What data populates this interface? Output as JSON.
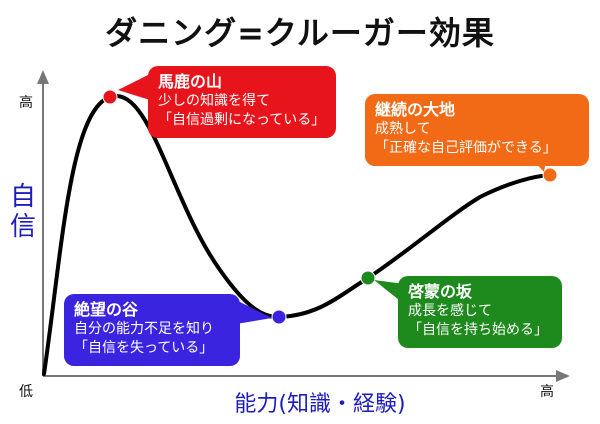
{
  "title": "ダニング=クルーガー効果",
  "axes": {
    "y_title": "自信",
    "x_title": "能力(知識・経験)",
    "y_high": "高",
    "origin_low": "低",
    "x_high": "高"
  },
  "stages": [
    {
      "id": "peak",
      "name": "馬鹿の山",
      "lines": [
        "少しの知識を得て",
        "「自信過剰になっている」"
      ],
      "color": "#e8141c"
    },
    {
      "id": "valley",
      "name": "絶望の谷",
      "lines": [
        "自分の能力不足を知り",
        "「自信を失っている」"
      ],
      "color": "#3b24e0"
    },
    {
      "id": "slope",
      "name": "啓蒙の坂",
      "lines": [
        "成長を感じて",
        "「自信を持ち始める」"
      ],
      "color": "#1e8a1e"
    },
    {
      "id": "plateau",
      "name": "継続の大地",
      "lines": [
        "成熟して",
        "「正確な自己評価ができる」"
      ],
      "color": "#f26a16"
    }
  ]
}
